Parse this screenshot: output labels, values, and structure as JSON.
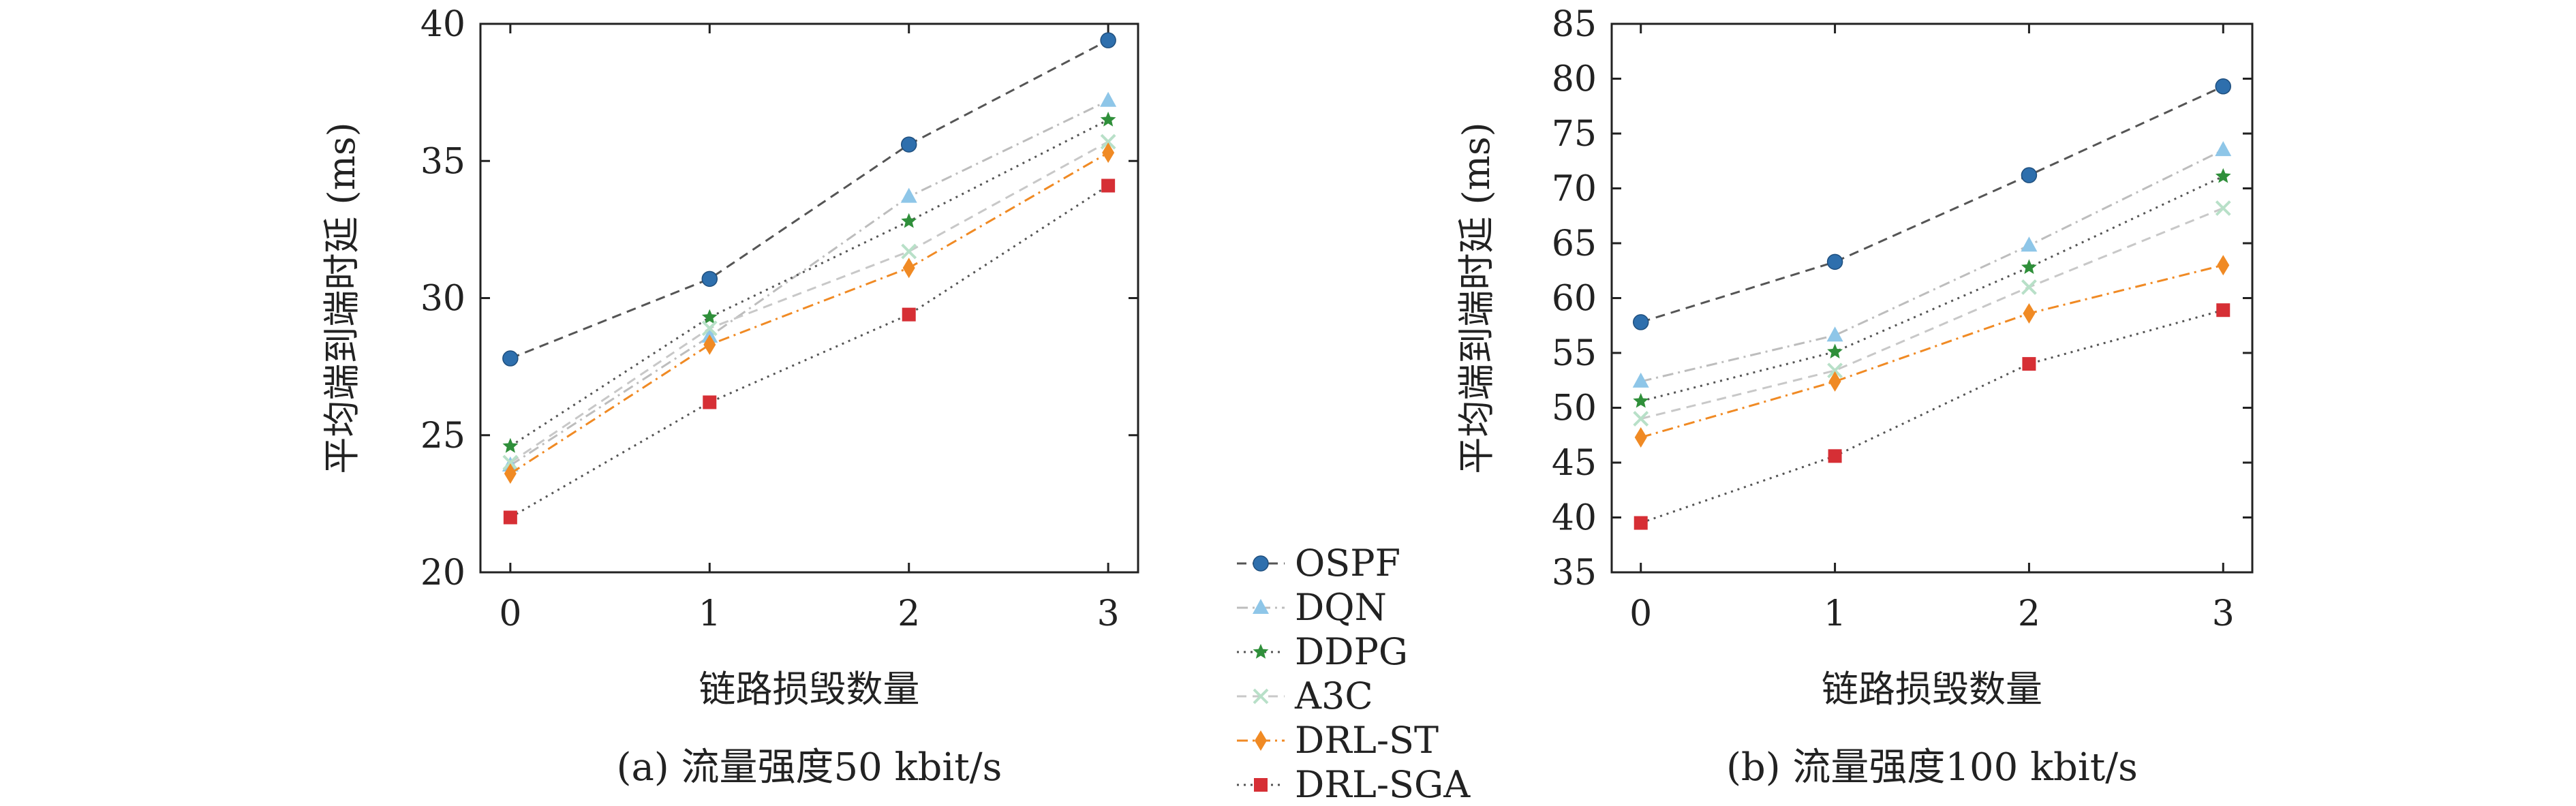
{
  "chart_data": [
    {
      "type": "line",
      "title": "(a) 流量强度50 kbit/s",
      "xlabel": "链路损毁数量",
      "ylabel": "平均端到端时延 (ms)",
      "categories": [
        "0",
        "1",
        "2",
        "3"
      ],
      "x": [
        0,
        1,
        2,
        3
      ],
      "xlim": [
        -0.15,
        3.15
      ],
      "ylim": [
        20,
        40
      ],
      "yticks": [
        20,
        25,
        30,
        35,
        40
      ],
      "grid": false,
      "series": [
        {
          "name": "OSPF",
          "values": [
            27.8,
            30.7,
            35.6,
            39.4
          ]
        },
        {
          "name": "DQN",
          "values": [
            23.9,
            28.6,
            33.7,
            37.2
          ]
        },
        {
          "name": "DDPG",
          "values": [
            24.6,
            29.3,
            32.8,
            36.5
          ]
        },
        {
          "name": "A3C",
          "values": [
            24.0,
            28.9,
            31.7,
            35.7
          ]
        },
        {
          "name": "DRL-ST",
          "values": [
            23.6,
            28.3,
            31.1,
            35.3
          ]
        },
        {
          "name": "DRL-SGA",
          "values": [
            22.0,
            26.2,
            29.4,
            34.1
          ]
        }
      ]
    },
    {
      "type": "line",
      "title": "(b) 流量强度100 kbit/s",
      "xlabel": "链路损毁数量",
      "ylabel": "平均端到端时延 (ms)",
      "categories": [
        "0",
        "1",
        "2",
        "3"
      ],
      "x": [
        0,
        1,
        2,
        3
      ],
      "xlim": [
        -0.15,
        3.15
      ],
      "ylim": [
        35,
        85
      ],
      "yticks": [
        35,
        40,
        45,
        50,
        55,
        60,
        65,
        70,
        75,
        80,
        85
      ],
      "grid": false,
      "series": [
        {
          "name": "OSPF",
          "values": [
            57.8,
            63.3,
            71.2,
            79.3
          ]
        },
        {
          "name": "DQN",
          "values": [
            52.4,
            56.6,
            64.8,
            73.5
          ]
        },
        {
          "name": "DDPG",
          "values": [
            50.6,
            55.1,
            62.8,
            71.1
          ]
        },
        {
          "name": "A3C",
          "values": [
            49.0,
            53.4,
            61.0,
            68.2
          ]
        },
        {
          "name": "DRL-ST",
          "values": [
            47.3,
            52.4,
            58.6,
            63.0
          ]
        },
        {
          "name": "DRL-SGA",
          "values": [
            39.5,
            45.6,
            54.0,
            58.9
          ]
        }
      ]
    }
  ],
  "legend": {
    "placement": "center between panels",
    "entries": [
      "OSPF",
      "DQN",
      "DDPG",
      "A3C",
      "DRL-ST",
      "DRL-SGA"
    ]
  },
  "series_style": [
    {
      "name": "OSPF",
      "color": "#555555",
      "marker": "circle",
      "marker_color": "#2e6fad",
      "dash": "dashed"
    },
    {
      "name": "DQN",
      "color": "#bdbdbd",
      "marker": "triangle",
      "marker_color": "#8ec6e8",
      "dash": "dashdot"
    },
    {
      "name": "DDPG",
      "color": "#555555",
      "marker": "star",
      "marker_color": "#2f8f3a",
      "dash": "dotted"
    },
    {
      "name": "A3C",
      "color": "#c8c8c8",
      "marker": "x",
      "marker_color": "#b8e0c8",
      "dash": "dashed"
    },
    {
      "name": "DRL-ST",
      "color": "#f08a24",
      "marker": "diamond",
      "marker_color": "#f08a24",
      "dash": "dashdot"
    },
    {
      "name": "DRL-SGA",
      "color": "#555555",
      "marker": "square",
      "marker_color": "#d62f35",
      "dash": "dotted"
    }
  ]
}
